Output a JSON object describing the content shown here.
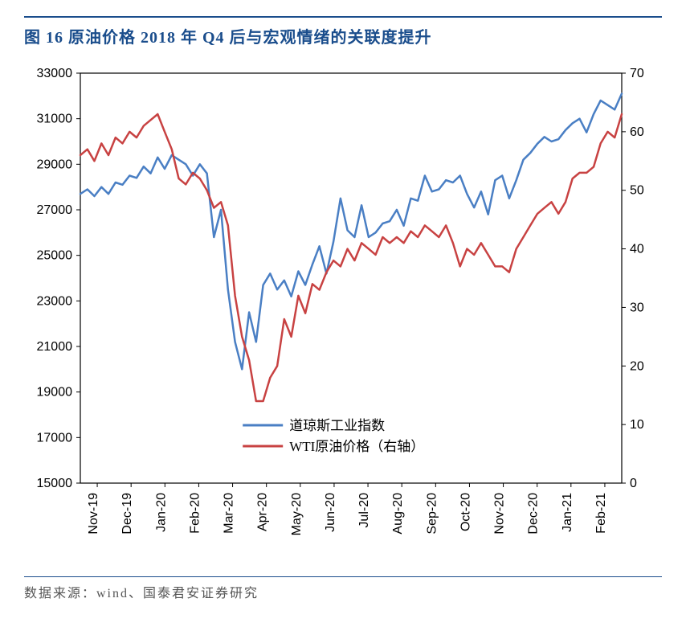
{
  "title": "图 16 原油价格 2018 年 Q4 后与宏观情绪的关联度提升",
  "source": "数据来源：wind、国泰君安证券研究",
  "chart": {
    "type": "line",
    "background_color": "#ffffff",
    "border_color": "#000000",
    "line_width": 2.5,
    "left_axis": {
      "label": "",
      "min": 15000,
      "max": 33000,
      "ticks": [
        15000,
        17000,
        19000,
        21000,
        23000,
        25000,
        27000,
        29000,
        31000,
        33000
      ],
      "tick_fontsize": 16
    },
    "right_axis": {
      "label": "",
      "min": 0,
      "max": 70,
      "ticks": [
        0,
        10,
        20,
        30,
        40,
        50,
        60,
        70
      ],
      "tick_fontsize": 16
    },
    "x_axis": {
      "categories": [
        "Nov-19",
        "Dec-19",
        "Jan-20",
        "Feb-20",
        "Mar-20",
        "Apr-20",
        "May-20",
        "Jun-20",
        "Jul-20",
        "Aug-20",
        "Sep-20",
        "Oct-20",
        "Nov-20",
        "Dec-20",
        "Jan-21",
        "Feb-21"
      ],
      "tick_fontsize": 16,
      "rotation": -90
    },
    "series": [
      {
        "name": "道琼斯工业指数",
        "axis": "left",
        "color": "#4a7fc4",
        "data": [
          27700,
          27900,
          27600,
          28000,
          27700,
          28200,
          28100,
          28500,
          28400,
          28900,
          28600,
          29300,
          28800,
          29400,
          29200,
          29000,
          28500,
          29000,
          28600,
          25800,
          27000,
          23500,
          21200,
          20000,
          22500,
          21200,
          23700,
          24200,
          23500,
          23900,
          23200,
          24300,
          23700,
          24600,
          25400,
          24200,
          25600,
          27500,
          26100,
          25800,
          27200,
          25800,
          26000,
          26400,
          26500,
          27000,
          26300,
          27500,
          27400,
          28500,
          27800,
          27900,
          28300,
          28200,
          28500,
          27700,
          27100,
          27800,
          26800,
          28300,
          28500,
          27500,
          28300,
          29200,
          29500,
          29900,
          30200,
          30000,
          30100,
          30500,
          30800,
          31000,
          30400,
          31200,
          31800,
          31600,
          31400,
          32100
        ]
      },
      {
        "name": "WTI原油价格（右轴）",
        "axis": "right",
        "color": "#c84242",
        "data": [
          56,
          57,
          55,
          58,
          56,
          59,
          58,
          60,
          59,
          61,
          62,
          63,
          60,
          57,
          52,
          51,
          53,
          52,
          50,
          47,
          48,
          44,
          32,
          25,
          21,
          14,
          14,
          18,
          20,
          28,
          25,
          32,
          29,
          34,
          33,
          36,
          38,
          37,
          40,
          38,
          41,
          40,
          39,
          42,
          41,
          42,
          41,
          43,
          42,
          44,
          43,
          42,
          44,
          41,
          37,
          40,
          39,
          41,
          39,
          37,
          37,
          36,
          40,
          42,
          44,
          46,
          47,
          48,
          46,
          48,
          52,
          53,
          53,
          54,
          58,
          60,
          59,
          63
        ]
      }
    ],
    "legend": {
      "position": "bottom-center",
      "fontsize": 17
    }
  }
}
